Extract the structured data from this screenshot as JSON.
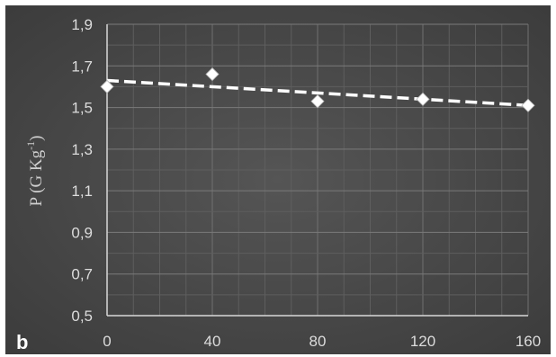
{
  "panel_label": "b",
  "chart_data": {
    "type": "scatter",
    "title": "",
    "xlabel": "",
    "ylabel": "P (G Kg",
    "ylabel_superscript": "-1",
    "ylabel_close": ")",
    "x_ticks": [
      "0",
      "40",
      "80",
      "120",
      "160"
    ],
    "y_ticks": [
      "0,5",
      "0,7",
      "0,9",
      "1,1",
      "1,3",
      "1,5",
      "1,7",
      "1,9"
    ],
    "xlim": [
      0,
      160
    ],
    "ylim": [
      0.5,
      1.9
    ],
    "x_minor_step": 10,
    "y_minor_step": 0.1,
    "grid": true,
    "marker": "diamond",
    "marker_color": "#ffffff",
    "background_color": "#4a4a4a",
    "points": [
      {
        "x": 0,
        "y": 1.6
      },
      {
        "x": 40,
        "y": 1.66
      },
      {
        "x": 80,
        "y": 1.53
      },
      {
        "x": 120,
        "y": 1.54
      },
      {
        "x": 160,
        "y": 1.51
      }
    ],
    "trendline": {
      "type": "linear",
      "style": "dashed",
      "color": "#ffffff",
      "y_start": 1.63,
      "y_end": 1.51
    }
  }
}
